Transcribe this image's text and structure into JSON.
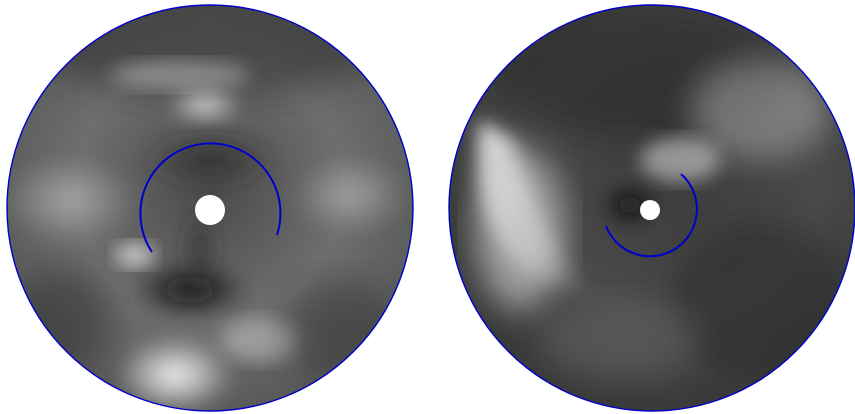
{
  "figure": {
    "panels": [
      {
        "id": "left",
        "description_tone": "grayscale-disc",
        "outline_color": "#0000cc",
        "inner_arc_color": "#0000cc"
      },
      {
        "id": "right",
        "description_tone": "grayscale-disc",
        "outline_color": "#0000cc",
        "inner_arc_color": "#0000cc"
      }
    ],
    "colors": {
      "background": "#ffffff",
      "outline": "#0000cc",
      "disc_dark": "#1a1a1a",
      "disc_mid": "#6a6a6a",
      "disc_light": "#e6e6e6"
    }
  }
}
